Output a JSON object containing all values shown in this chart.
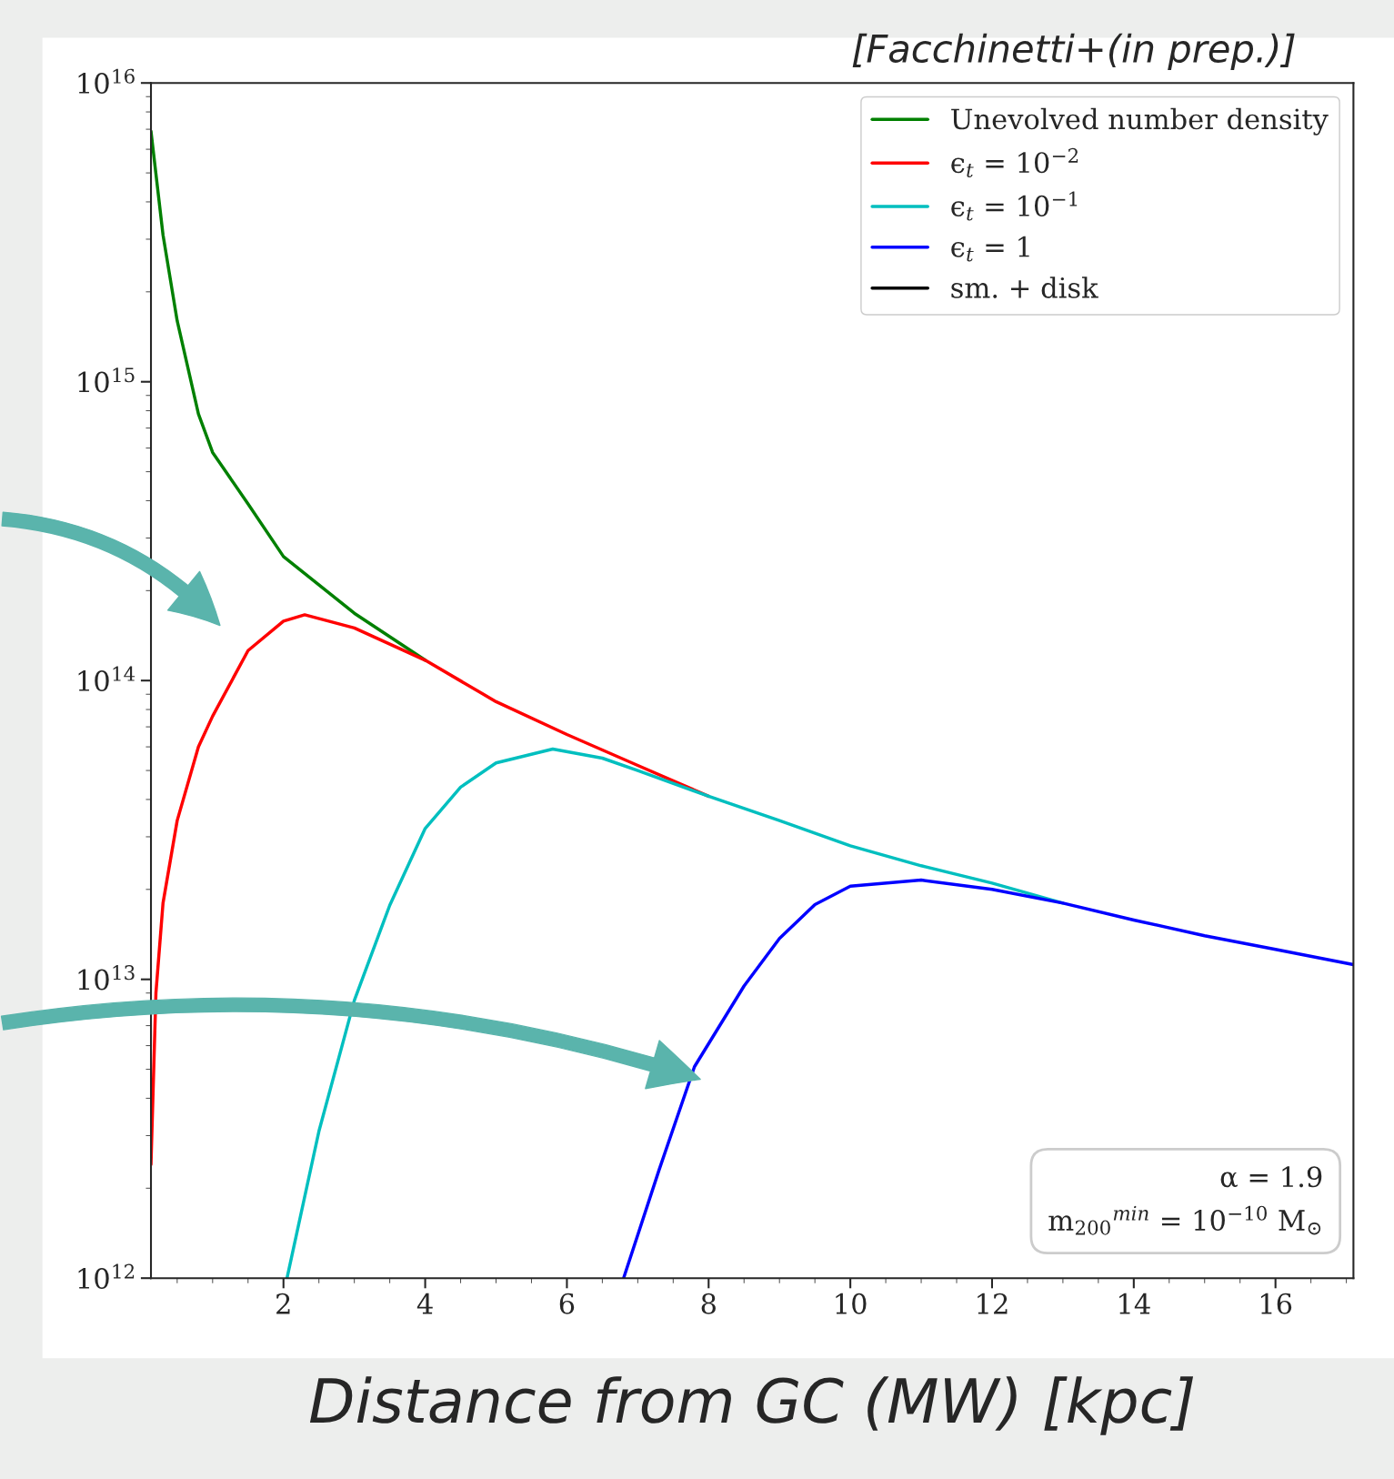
{
  "chart_data": {
    "type": "line",
    "xlabel": "Distance from GC (MW) [kpc]",
    "annotations": [
      "[Facchinetti+(in prep.)]",
      "α = 1.9",
      "m$_{200}$$^{min}$ = 10$^{−10}$ M$_{⊙}$"
    ],
    "log": "y",
    "xlim": [
      0.13,
      17.1
    ],
    "ylim": [
      1000000000000.0,
      1e+16
    ],
    "xticks": [
      2,
      4,
      6,
      8,
      10,
      12,
      14,
      16
    ],
    "yticks": [
      {
        "value": 1000000000000.0,
        "label": "10$^{12}$"
      },
      {
        "value": 10000000000000.0,
        "label": "10$^{13}$"
      },
      {
        "value": 100000000000000.0,
        "label": "10$^{14}$"
      },
      {
        "value": 1000000000000000.0,
        "label": "10$^{15}$"
      },
      {
        "value": 1e+16,
        "label": "10$^{16}$"
      }
    ],
    "grid": false,
    "legend": "top right",
    "series": [
      {
        "name": "Unevolved number density",
        "color": "#008000",
        "x": [
          0.13,
          0.3,
          0.5,
          0.8,
          1,
          1.5,
          2,
          3,
          4
        ],
        "values": [
          6900000000000000.0,
          3100000000000000.0,
          1600000000000000.0,
          780000000000000.0,
          580000000000000.0,
          390000000000000.0,
          260000000000000.0,
          168000000000000.0,
          117000000000000.0
        ]
      },
      {
        "name": "ϵ$_{t}$ = 10$^{−2}$",
        "color": "#ff0000",
        "x": [
          0.13,
          0.2,
          0.3,
          0.5,
          0.8,
          1,
          1.5,
          2,
          2.3,
          3,
          4,
          5,
          6,
          7,
          8
        ],
        "values": [
          2400000000000.0,
          9000000000000.0,
          18000000000000.0,
          34000000000000.0,
          60000000000000.0,
          76000000000000.0,
          126000000000000.0,
          158000000000000.0,
          166000000000000.0,
          150000000000000.0,
          117000000000000.0,
          85000000000000.0,
          66000000000000.0,
          52000000000000.0,
          41000000000000.0
        ]
      },
      {
        "name": "ϵ$_{t}$ = 10$^{−1}$",
        "color": "#00bfbf",
        "x": [
          2.05,
          2.5,
          3,
          3.5,
          4,
          4.5,
          5,
          5.8,
          6.5,
          7,
          8,
          9,
          10,
          11,
          12,
          13
        ],
        "values": [
          1000000000000.0,
          3100000000000.0,
          8500000000000.0,
          17700000000000.0,
          32000000000000.0,
          44000000000000.0,
          53000000000000.0,
          59000000000000.0,
          55000000000000.0,
          50000000000000.0,
          41000000000000.0,
          34000000000000.0,
          28000000000000.0,
          24000000000000.0,
          21000000000000.0,
          18000000000000.0
        ]
      },
      {
        "name": "ϵ$_{t}$ = 1",
        "color": "#0000ff",
        "x": [
          6.8,
          7.3,
          7.8,
          8.5,
          9,
          9.5,
          10,
          11,
          12,
          13,
          14,
          15,
          16,
          17.1
        ],
        "values": [
          1000000000000.0,
          2300000000000.0,
          5100000000000.0,
          9500000000000.0,
          13700000000000.0,
          17800000000000.0,
          20500000000000.0,
          21500000000000.0,
          20000000000000.0,
          18000000000000.0,
          15800000000000.0,
          14000000000000.0,
          12600000000000.0,
          11200000000000.0
        ]
      },
      {
        "name": "sm. + disk",
        "color": "#000000"
      }
    ]
  }
}
